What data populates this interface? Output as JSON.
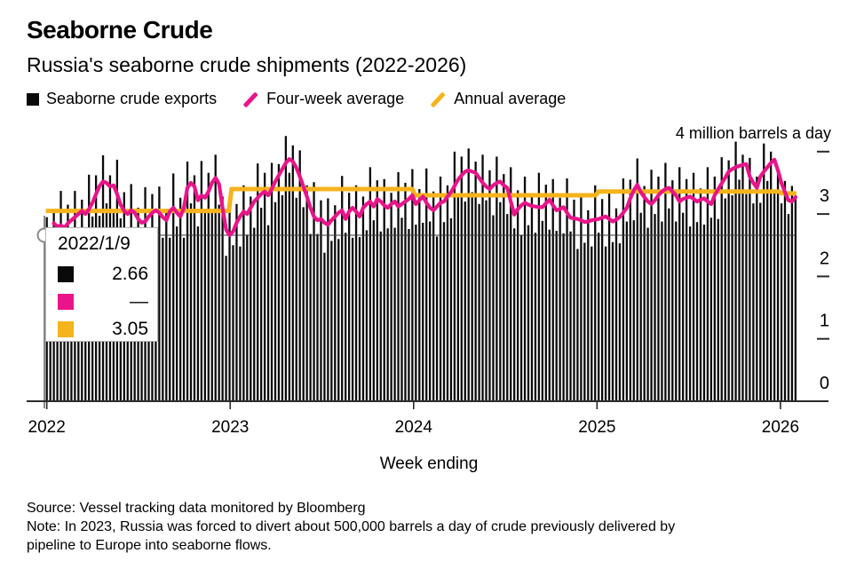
{
  "header": {
    "title": "Seaborne Crude",
    "subtitle": "Russia's seaborne crude shipments (2022-2026)"
  },
  "legend": [
    {
      "label": "Seaborne crude exports",
      "color": "#0a0a0a",
      "marker": "square"
    },
    {
      "label": "Four-week average",
      "color": "#e9148a",
      "marker": "slash"
    },
    {
      "label": "Annual average",
      "color": "#f5b31c",
      "marker": "slash"
    }
  ],
  "axis": {
    "unit_label": "4 million barrels a day",
    "y_ticks": [
      {
        "value": 4,
        "label": ""
      },
      {
        "value": 3,
        "label": "3"
      },
      {
        "value": 2,
        "label": "2"
      },
      {
        "value": 1,
        "label": "1"
      },
      {
        "value": 0,
        "label": "0"
      }
    ],
    "x_ticks": [
      "2022",
      "2023",
      "2024",
      "2025",
      "2026"
    ],
    "x_label": "Week ending"
  },
  "tooltip": {
    "date": "2022/1/9",
    "rows": [
      {
        "series": "Seaborne crude exports",
        "color": "#0a0a0a",
        "value": "2.66"
      },
      {
        "series": "Four-week average",
        "color": "#e9148a",
        "value": "—"
      },
      {
        "series": "Annual average",
        "color": "#f5b31c",
        "value": "3.05"
      }
    ]
  },
  "footer": {
    "source": "Source: Vessel tracking data monitored by Bloomberg",
    "note_line1": "Note: In 2023, Russia was forced to divert about 500,000 barrels a day of crude previously delivered by",
    "note_line2": "pipeline to Europe into seaborne flows."
  },
  "chart_data": {
    "type": "bar",
    "title": "Seaborne Crude",
    "xlabel": "Week ending",
    "ylabel": "million barrels a day",
    "ylim": [
      0,
      4
    ],
    "x_range_years": [
      2022,
      2026
    ],
    "weeks_per_year": 52.18,
    "bar_color": "#0a0a0a",
    "four_week_avg_color": "#e9148a",
    "annual_avg_color": "#f5b31c",
    "crosshair": {
      "date": "2022/1/9",
      "value": 2.66
    },
    "bars": [
      2.95,
      2.66,
      3.03,
      2.48,
      3.37,
      2.56,
      3.15,
      2.52,
      3.37,
      2.67,
      3.23,
      2.58,
      3.63,
      2.96,
      3.62,
      2.97,
      3.94,
      3.17,
      3.62,
      3.04,
      3.87,
      2.93,
      3.35,
      2.52,
      3.48,
      2.69,
      3.1,
      2.44,
      3.43,
      2.74,
      3.32,
      2.58,
      3.44,
      2.62,
      3.08,
      2.62,
      3.65,
      2.8,
      3.26,
      2.62,
      3.84,
      3.17,
      3.62,
      2.8,
      3.85,
      3.04,
      3.66,
      3.02,
      3.95,
      3.15,
      3.28,
      2.33,
      3.1,
      2.5,
      3.16,
      2.48,
      3.46,
      2.67,
      3.28,
      2.78,
      3.81,
      3.1,
      3.66,
      2.82,
      3.82,
      3.19,
      3.8,
      3.3,
      4.25,
      3.66,
      4.1,
      3.26,
      4.02,
      3.11,
      3.46,
      2.68,
      3.51,
      2.68,
      3.22,
      2.38,
      3.25,
      2.57,
      3.14,
      2.6,
      3.61,
      2.7,
      3.34,
      2.62,
      3.46,
      2.63,
      3.28,
      2.74,
      3.75,
      2.9,
      3.54,
      2.72,
      3.56,
      2.77,
      3.34,
      2.78,
      3.67,
      2.94,
      3.5,
      2.76,
      3.72,
      2.83,
      3.4,
      2.86,
      3.73,
      2.88,
      3.36,
      2.64,
      3.6,
      2.87,
      3.46,
      2.93,
      4.0,
      3.33,
      3.92,
      3.2,
      4.05,
      3.35,
      3.84,
      3.16,
      3.95,
      3.22,
      3.7,
      2.98,
      3.92,
      3.19,
      3.64,
      3.0,
      3.75,
      2.77,
      3.38,
      2.66,
      3.6,
      2.82,
      3.31,
      2.7,
      3.66,
      2.89,
      3.47,
      2.75,
      3.56,
      2.73,
      3.26,
      2.69,
      3.57,
      2.72,
      3.23,
      2.44,
      3.32,
      2.54,
      3.06,
      2.48,
      3.46,
      2.7,
      3.24,
      2.48,
      3.34,
      2.55,
      3.09,
      2.53,
      3.57,
      2.88,
      3.55,
      2.9,
      3.89,
      3.02,
      3.45,
      2.78,
      3.71,
      3.0,
      3.6,
      2.88,
      3.82,
      3.09,
      3.54,
      2.88,
      3.75,
      3.02,
      3.56,
      2.8,
      3.66,
      2.87,
      3.41,
      2.83,
      3.75,
      2.94,
      3.6,
      2.92,
      3.91,
      3.25,
      3.86,
      3.3,
      4.16,
      3.55,
      3.95,
      3.32,
      3.9,
      3.17,
      3.6,
      3.18,
      4.13,
      3.53,
      4.0,
      3.39,
      3.72,
      3.17,
      3.53,
      3.0,
      3.45,
      3.3
    ],
    "four_week_avg": [
      null,
      null,
      2.85,
      2.8,
      2.82,
      2.78,
      2.85,
      2.9,
      2.95,
      3.0,
      3.05,
      3.0,
      3.08,
      3.18,
      3.32,
      3.45,
      3.52,
      3.5,
      3.44,
      3.46,
      3.32,
      3.15,
      3.05,
      3.0,
      3.06,
      3.02,
      2.92,
      2.86,
      2.88,
      2.96,
      3.02,
      3.06,
      3.02,
      2.95,
      2.9,
      3.04,
      3.1,
      3.02,
      2.96,
      3.1,
      3.42,
      3.5,
      3.44,
      3.22,
      3.3,
      3.26,
      3.36,
      3.5,
      3.58,
      3.48,
      3.1,
      2.75,
      2.66,
      2.72,
      2.86,
      2.96,
      3.04,
      3.0,
      3.1,
      3.2,
      3.26,
      3.32,
      3.36,
      3.3,
      3.4,
      3.52,
      3.62,
      3.72,
      3.82,
      3.88,
      3.84,
      3.74,
      3.6,
      3.44,
      3.28,
      3.1,
      2.96,
      2.9,
      2.92,
      2.86,
      2.83,
      2.9,
      2.96,
      3.02,
      3.06,
      2.92,
      3.04,
      3.1,
      3.04,
      2.96,
      3.1,
      3.16,
      3.2,
      3.12,
      3.24,
      3.2,
      3.14,
      3.1,
      3.16,
      3.2,
      3.12,
      3.16,
      3.2,
      3.24,
      3.3,
      3.16,
      3.22,
      3.28,
      3.18,
      3.1,
      3.06,
      3.12,
      3.18,
      3.2,
      3.28,
      3.35,
      3.45,
      3.55,
      3.62,
      3.68,
      3.7,
      3.68,
      3.66,
      3.58,
      3.5,
      3.44,
      3.4,
      3.46,
      3.5,
      3.52,
      3.46,
      3.42,
      3.2,
      2.99,
      3.08,
      3.14,
      3.18,
      3.15,
      3.13,
      3.12,
      3.11,
      3.11,
      3.17,
      3.23,
      3.14,
      3.06,
      3.08,
      3.11,
      3.02,
      2.94,
      2.93,
      2.92,
      2.9,
      2.87,
      2.88,
      2.9,
      2.91,
      2.92,
      2.94,
      2.96,
      2.92,
      2.88,
      2.91,
      2.95,
      3.02,
      3.1,
      3.25,
      3.38,
      3.47,
      3.35,
      3.27,
      3.2,
      3.16,
      3.22,
      3.3,
      3.36,
      3.4,
      3.42,
      3.36,
      3.3,
      3.2,
      3.24,
      3.26,
      3.28,
      3.24,
      3.2,
      3.23,
      3.25,
      3.2,
      3.16,
      3.3,
      3.4,
      3.49,
      3.58,
      3.68,
      3.72,
      3.75,
      3.77,
      3.79,
      3.8,
      3.6,
      3.5,
      3.42,
      3.6,
      3.68,
      3.75,
      3.82,
      3.87,
      3.7,
      3.5,
      3.35,
      3.22,
      3.2,
      3.27
    ],
    "annual_average": [
      {
        "year": "2022",
        "value": 3.05
      },
      {
        "year": "2023",
        "value": 3.4
      },
      {
        "year": "2024",
        "value": 3.3
      },
      {
        "year": "2025",
        "value": 3.36
      },
      {
        "year": "2026",
        "value": 3.33
      }
    ]
  }
}
